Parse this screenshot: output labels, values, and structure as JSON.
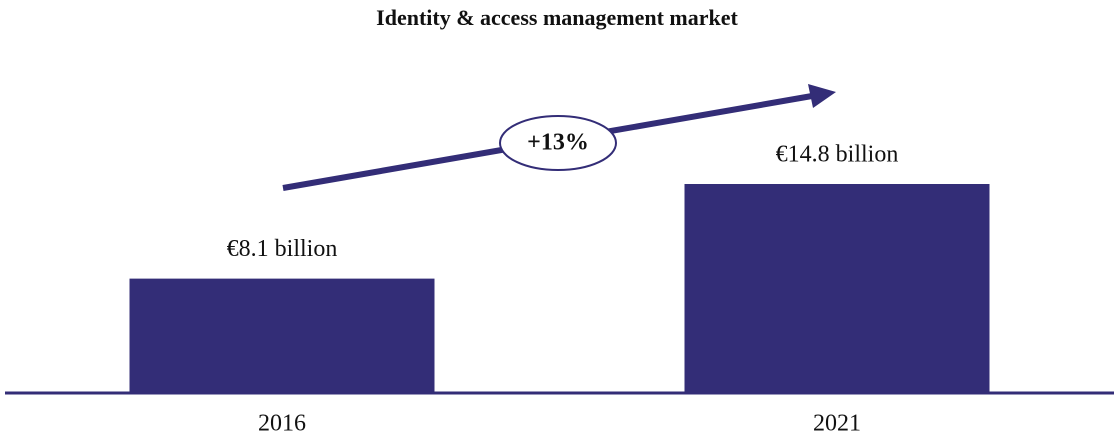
{
  "chart_data": {
    "type": "bar",
    "title": "Identity & access management market",
    "categories": [
      "2016",
      "2021"
    ],
    "values": [
      8.1,
      14.8
    ],
    "value_labels": [
      "€8.1 billion",
      "€14.8 billion"
    ],
    "color": "#332d77",
    "annotation": "+13%"
  }
}
